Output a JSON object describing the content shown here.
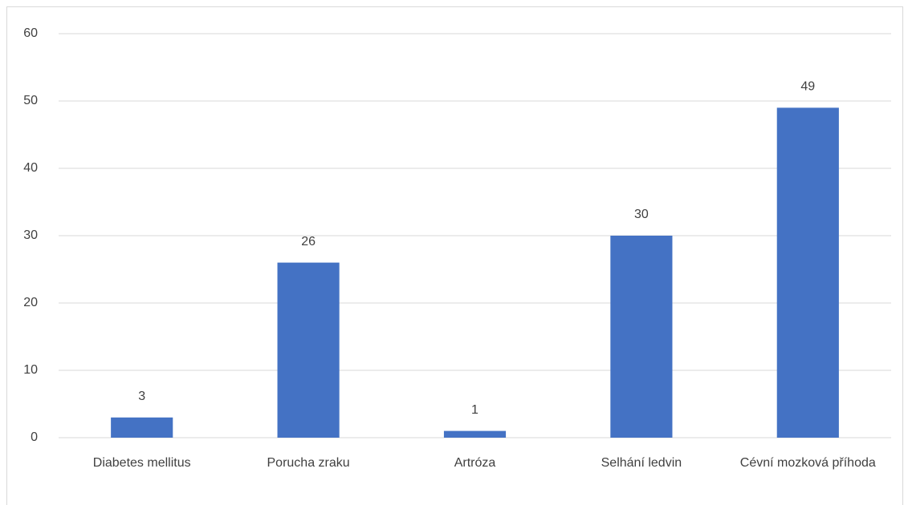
{
  "chart_data": {
    "type": "bar",
    "categories": [
      "Diabetes mellitus",
      "Porucha zraku",
      "Artróza",
      "Selhání ledvin",
      "Cévní mozková příhoda"
    ],
    "values": [
      3,
      26,
      1,
      30,
      49
    ],
    "color": "#4472c4",
    "ylim": [
      0,
      60
    ],
    "yticks": [
      0,
      10,
      20,
      30,
      40,
      50,
      60
    ],
    "grid": true
  }
}
